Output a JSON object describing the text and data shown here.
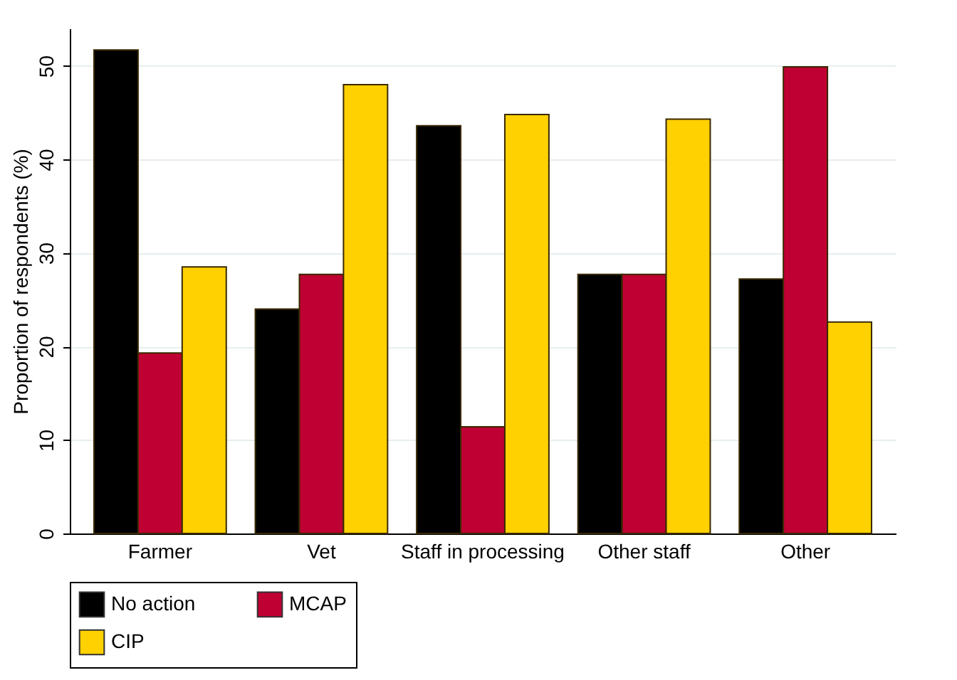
{
  "chart_data": {
    "type": "bar",
    "ylabel": "Proportion of respondents (%)",
    "categories": [
      "Farmer",
      "Vet",
      "Staff in processing",
      "Other staff",
      "Other"
    ],
    "series": [
      {
        "name": "No action",
        "color": "#000000",
        "values": [
          51.7,
          24.0,
          43.6,
          27.7,
          27.2
        ]
      },
      {
        "name": "MCAP",
        "color": "#bf0033",
        "values": [
          19.3,
          27.7,
          11.4,
          27.7,
          49.9
        ]
      },
      {
        "name": "CIP",
        "color": "#ffd100",
        "values": [
          28.5,
          48.0,
          44.8,
          44.3,
          22.6
        ]
      }
    ],
    "ylim": [
      0,
      54
    ],
    "yticks": [
      0,
      10,
      20,
      30,
      40,
      50
    ],
    "grid": "y",
    "legend": "bottom"
  }
}
